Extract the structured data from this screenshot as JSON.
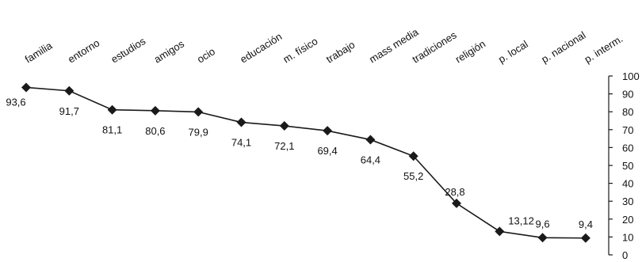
{
  "chart_data": {
    "type": "line",
    "categories": [
      "familia",
      "entorno",
      "estudios",
      "amigos",
      "ocio",
      "educación",
      "m. físico",
      "trabajo",
      "mass media",
      "tradiciones",
      "religión",
      "p. local",
      "p. nacional",
      "p. interm."
    ],
    "values": [
      93.6,
      91.7,
      81.1,
      80.6,
      79.9,
      74.1,
      72.1,
      69.4,
      64.4,
      55.2,
      28.8,
      13.12,
      9.6,
      9.4
    ],
    "data_labels": [
      "93,6",
      "91,7",
      "81,1",
      "80,6",
      "79,9",
      "74,1",
      "72,1",
      "69,4",
      "64,4",
      "55,2",
      "28,8",
      "13,12",
      "9,6",
      "9,4"
    ],
    "yticks": [
      "0",
      "10",
      "20",
      "30",
      "40",
      "50",
      "60",
      "70",
      "80",
      "90",
      "100"
    ],
    "ylim": [
      0,
      100
    ],
    "y_axis_side": "right",
    "grid": false,
    "marker": "diamond",
    "colors": {
      "line": "#1a1a1a",
      "marker": "#1a1a1a",
      "text": "#111111"
    }
  }
}
